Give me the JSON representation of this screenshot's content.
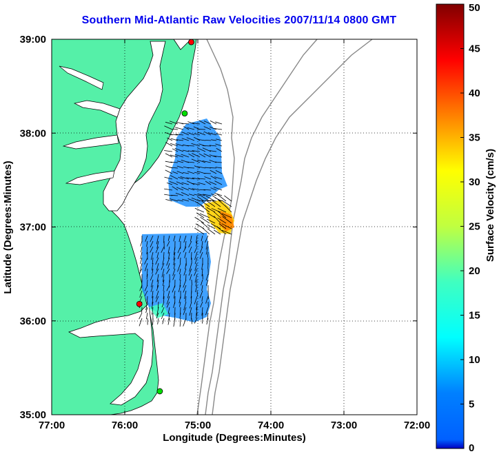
{
  "title": "Southern Mid-Atlantic Raw Velocities 2007/11/14 0800 GMT",
  "map": {
    "xlabel": "Longitude (Degrees:Minutes)",
    "ylabel": "Latitude (Degrees:Minutes)",
    "lon_range": [
      -77,
      -72
    ],
    "lat_range": [
      35,
      39
    ],
    "lon_ticks": [
      {
        "value": -77,
        "label": "77:00"
      },
      {
        "value": -76,
        "label": "76:00"
      },
      {
        "value": -75,
        "label": "75:00"
      },
      {
        "value": -74,
        "label": "74:00"
      },
      {
        "value": -73,
        "label": "73:00"
      },
      {
        "value": -72,
        "label": "72:00"
      }
    ],
    "lat_ticks": [
      {
        "value": 35,
        "label": "35:00"
      },
      {
        "value": 36,
        "label": "36:00"
      },
      {
        "value": 37,
        "label": "37:00"
      },
      {
        "value": 38,
        "label": "38:00"
      },
      {
        "value": 39,
        "label": "39:00"
      }
    ],
    "grid": true,
    "land_color": "#55f0a8",
    "stations": [
      {
        "lon": -75.09,
        "lat": 38.97,
        "color": "#ff0000"
      },
      {
        "lon": -75.18,
        "lat": 38.21,
        "color": "#00dd00"
      },
      {
        "lon": -75.8,
        "lat": 36.18,
        "color": "#ff0000"
      },
      {
        "lon": -75.52,
        "lat": 35.25,
        "color": "#00dd00"
      }
    ]
  },
  "colorbar": {
    "label": "Surface Velocity (cm/s)",
    "min": 0,
    "max": 50,
    "ticks": [
      "0",
      "5",
      "10",
      "15",
      "20",
      "25",
      "30",
      "35",
      "40",
      "45",
      "50"
    ]
  }
}
